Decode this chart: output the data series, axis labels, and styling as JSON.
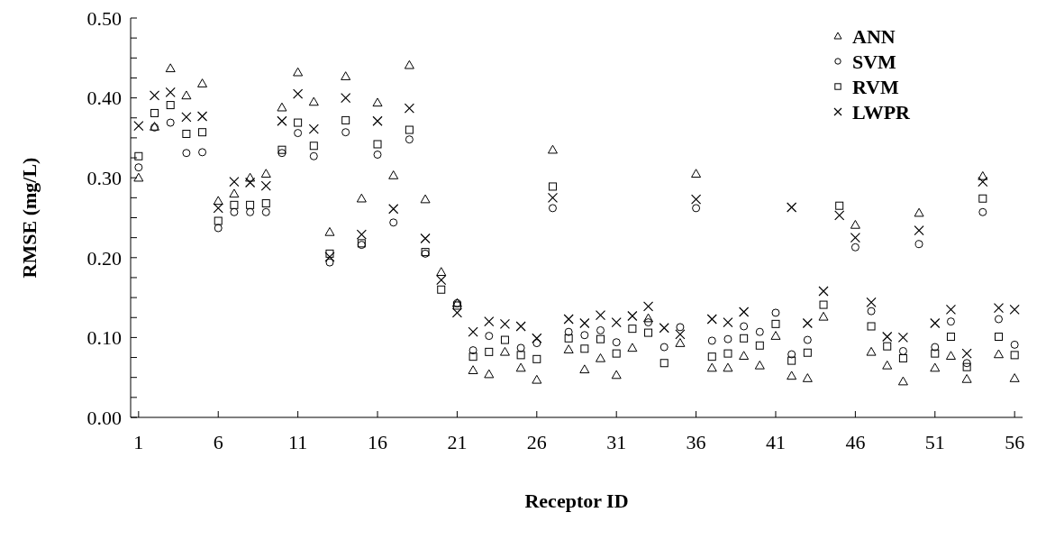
{
  "chart_data": {
    "type": "scatter",
    "xlabel": "Receptor ID",
    "ylabel": "RMSE (mg/L)",
    "x": [
      1,
      2,
      3,
      4,
      5,
      6,
      7,
      8,
      9,
      10,
      11,
      12,
      13,
      14,
      15,
      16,
      17,
      18,
      19,
      20,
      21,
      22,
      23,
      24,
      25,
      26,
      27,
      28,
      29,
      30,
      31,
      32,
      33,
      34,
      35,
      36,
      37,
      38,
      39,
      40,
      41,
      42,
      43,
      44,
      45,
      46,
      47,
      48,
      49,
      50,
      51,
      52,
      53,
      54,
      55,
      56
    ],
    "xlim": [
      0.5,
      56.5
    ],
    "xticks": [
      1,
      6,
      11,
      16,
      21,
      26,
      31,
      36,
      41,
      46,
      51,
      56
    ],
    "ylim": [
      0,
      0.5
    ],
    "yticks": [
      {
        "value": 0,
        "label": "0.00"
      },
      {
        "value": 0.025,
        "label": null
      },
      {
        "value": 0.05,
        "label": null
      },
      {
        "value": 0.075,
        "label": null
      },
      {
        "value": 0.1,
        "label": "0.10"
      },
      {
        "value": 0.125,
        "label": null
      },
      {
        "value": 0.15,
        "label": null
      },
      {
        "value": 0.175,
        "label": null
      },
      {
        "value": 0.2,
        "label": "0.20"
      },
      {
        "value": 0.225,
        "label": null
      },
      {
        "value": 0.25,
        "label": null
      },
      {
        "value": 0.275,
        "label": null
      },
      {
        "value": 0.3,
        "label": "0.30"
      },
      {
        "value": 0.325,
        "label": null
      },
      {
        "value": 0.35,
        "label": null
      },
      {
        "value": 0.375,
        "label": null
      },
      {
        "value": 0.4,
        "label": "0.40"
      },
      {
        "value": 0.425,
        "label": null
      },
      {
        "value": 0.45,
        "label": null
      },
      {
        "value": 0.475,
        "label": null
      },
      {
        "value": 0.5,
        "label": "0.50"
      }
    ],
    "grid": false,
    "legend": "top right",
    "series": [
      {
        "name": "ANN",
        "color": "#000000",
        "marker": "triangle",
        "values": [
          0.3,
          0.364,
          0.437,
          0.403,
          0.418,
          0.271,
          0.28,
          0.3,
          0.305,
          0.388,
          0.432,
          0.395,
          0.232,
          0.427,
          0.274,
          0.394,
          0.303,
          0.441,
          0.273,
          0.182,
          0.143,
          0.059,
          0.054,
          0.082,
          0.062,
          0.047,
          0.335,
          0.085,
          0.06,
          0.074,
          0.053,
          0.087,
          0.124,
          null,
          0.093,
          0.305,
          0.062,
          0.062,
          0.077,
          0.065,
          0.102,
          0.052,
          0.049,
          0.126,
          null,
          0.241,
          0.082,
          0.065,
          0.045,
          0.256,
          0.062,
          0.077,
          0.048,
          0.302,
          0.079,
          0.049
        ]
      },
      {
        "name": "SVM",
        "color": "#000000",
        "marker": "circle",
        "values": [
          0.313,
          0.363,
          0.369,
          0.331,
          0.332,
          0.237,
          0.257,
          0.257,
          0.257,
          0.331,
          0.356,
          0.327,
          0.194,
          0.357,
          0.216,
          0.329,
          0.244,
          0.348,
          0.205,
          null,
          0.143,
          0.084,
          0.102,
          null,
          0.087,
          0.093,
          0.262,
          0.107,
          0.103,
          0.109,
          0.094,
          null,
          0.119,
          0.088,
          0.113,
          0.262,
          0.096,
          0.098,
          0.114,
          0.107,
          0.131,
          0.079,
          0.097,
          null,
          null,
          0.213,
          0.133,
          null,
          0.083,
          0.217,
          0.088,
          0.12,
          0.068,
          0.257,
          0.123,
          0.091
        ]
      },
      {
        "name": "RVM",
        "color": "#000000",
        "marker": "square",
        "values": [
          0.327,
          0.381,
          0.391,
          0.355,
          0.357,
          0.246,
          0.266,
          0.266,
          0.268,
          0.335,
          0.369,
          0.34,
          0.205,
          0.372,
          0.218,
          0.342,
          null,
          0.36,
          0.207,
          0.16,
          0.14,
          0.076,
          0.082,
          0.097,
          0.078,
          0.073,
          0.289,
          0.099,
          0.086,
          0.098,
          0.08,
          0.111,
          0.106,
          0.068,
          null,
          null,
          0.076,
          0.08,
          0.099,
          0.09,
          0.117,
          0.071,
          0.081,
          0.141,
          0.265,
          null,
          0.114,
          0.089,
          0.074,
          null,
          0.08,
          0.101,
          0.063,
          0.274,
          0.101,
          0.078
        ]
      },
      {
        "name": "LWPR",
        "color": "#000000",
        "marker": "cross",
        "values": [
          0.365,
          0.403,
          0.407,
          0.376,
          0.377,
          0.262,
          0.295,
          0.294,
          0.29,
          0.371,
          0.405,
          0.361,
          0.201,
          0.4,
          0.229,
          0.371,
          0.261,
          0.387,
          0.224,
          0.172,
          0.131,
          0.107,
          0.12,
          0.117,
          0.114,
          0.099,
          0.275,
          0.123,
          0.118,
          0.128,
          0.119,
          0.127,
          0.139,
          0.112,
          0.104,
          0.273,
          0.123,
          0.119,
          0.132,
          null,
          null,
          0.263,
          0.118,
          0.158,
          0.253,
          0.225,
          0.144,
          0.101,
          0.1,
          0.234,
          0.118,
          0.135,
          0.08,
          0.295,
          0.137,
          0.135
        ]
      }
    ]
  }
}
